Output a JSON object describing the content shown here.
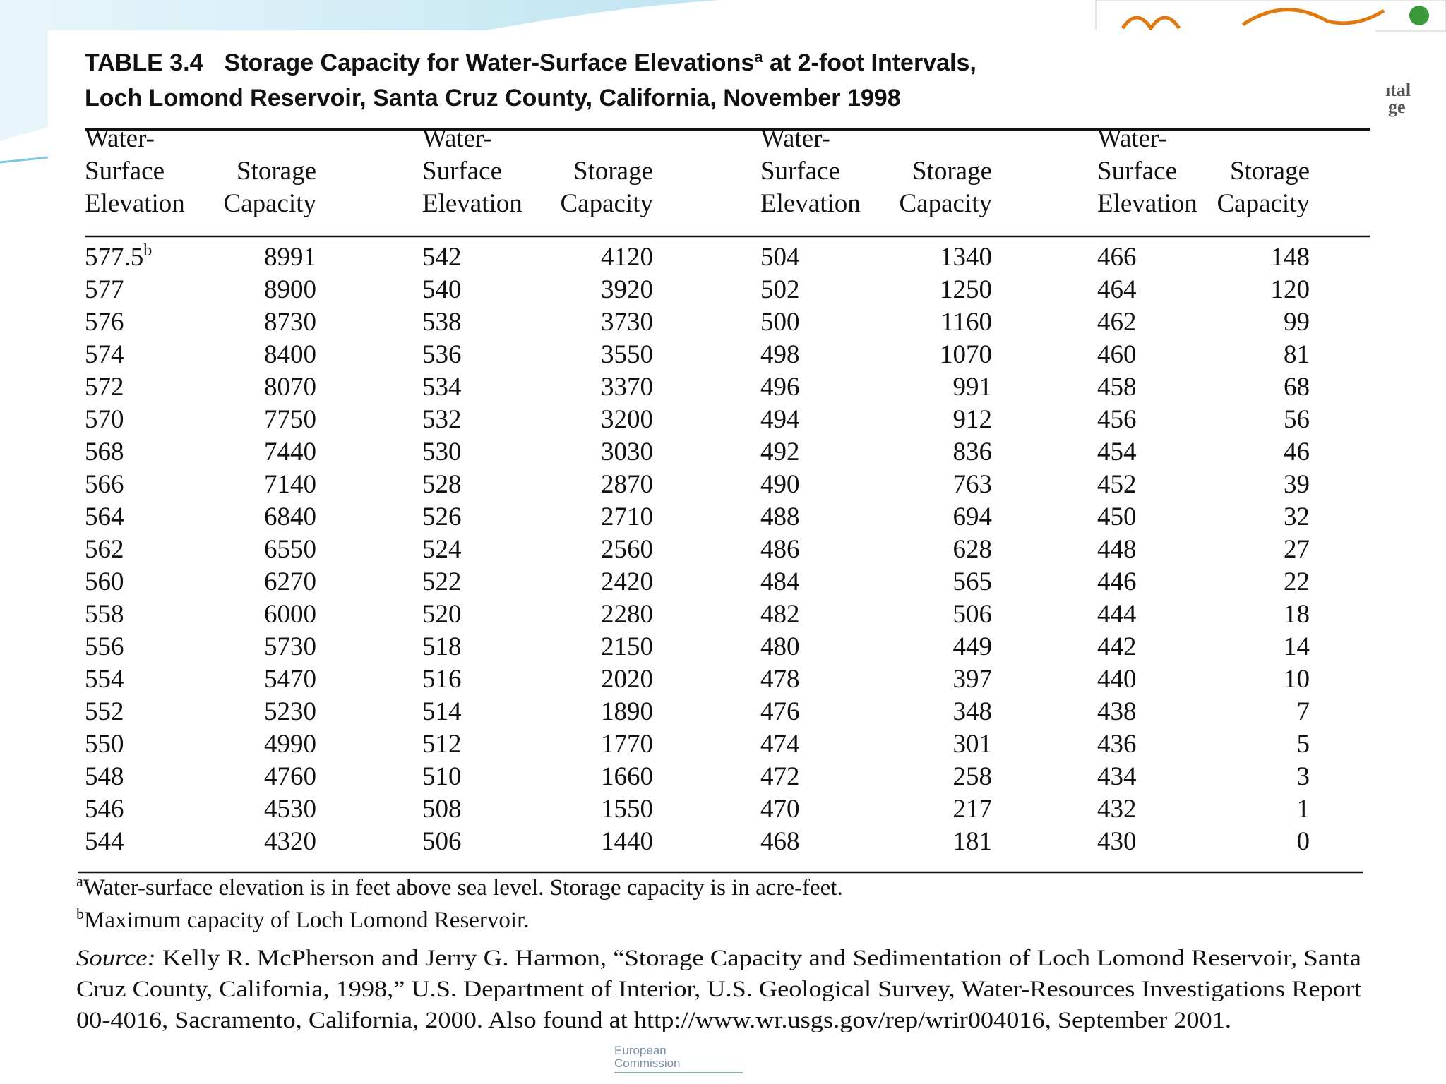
{
  "header": {
    "label": "TABLE 3.4",
    "title_line1_a": "Storage Capacity for Water-Surface Elevations",
    "title_line1_sup": "a",
    "title_line1_b": " at 2-foot Intervals,",
    "title_line2": "Loch Lomond Reservoir, Santa Cruz County, California, November 1998"
  },
  "side_fragments": [
    "ıtal",
    "ge"
  ],
  "table": {
    "columns": [
      [
        "Water-",
        "Surface",
        "Elevation"
      ],
      [
        "Storage",
        "Capacity"
      ],
      [
        "Water-",
        "Surface",
        "Elevation"
      ],
      [
        "Storage",
        "Capacity"
      ],
      [
        "Water-",
        "Surface",
        "Elevation"
      ],
      [
        "Storage",
        "Capacity"
      ],
      [
        "Water-",
        "Surface",
        "Elevation"
      ],
      [
        "Storage",
        "Capacity"
      ]
    ],
    "first_cell_note": "b",
    "rows": [
      [
        "577.5",
        "8991",
        "542",
        "4120",
        "504",
        "1340",
        "466",
        "148"
      ],
      [
        "577",
        "8900",
        "540",
        "3920",
        "502",
        "1250",
        "464",
        "120"
      ],
      [
        "576",
        "8730",
        "538",
        "3730",
        "500",
        "1160",
        "462",
        "99"
      ],
      [
        "574",
        "8400",
        "536",
        "3550",
        "498",
        "1070",
        "460",
        "81"
      ],
      [
        "572",
        "8070",
        "534",
        "3370",
        "496",
        "991",
        "458",
        "68"
      ],
      [
        "570",
        "7750",
        "532",
        "3200",
        "494",
        "912",
        "456",
        "56"
      ],
      [
        "568",
        "7440",
        "530",
        "3030",
        "492",
        "836",
        "454",
        "46"
      ],
      [
        "566",
        "7140",
        "528",
        "2870",
        "490",
        "763",
        "452",
        "39"
      ],
      [
        "564",
        "6840",
        "526",
        "2710",
        "488",
        "694",
        "450",
        "32"
      ],
      [
        "562",
        "6550",
        "524",
        "2560",
        "486",
        "628",
        "448",
        "27"
      ],
      [
        "560",
        "6270",
        "522",
        "2420",
        "484",
        "565",
        "446",
        "22"
      ],
      [
        "558",
        "6000",
        "520",
        "2280",
        "482",
        "506",
        "444",
        "18"
      ],
      [
        "556",
        "5730",
        "518",
        "2150",
        "480",
        "449",
        "442",
        "14"
      ],
      [
        "554",
        "5470",
        "516",
        "2020",
        "478",
        "397",
        "440",
        "10"
      ],
      [
        "552",
        "5230",
        "514",
        "1890",
        "476",
        "348",
        "438",
        "7"
      ],
      [
        "550",
        "4990",
        "512",
        "1770",
        "474",
        "301",
        "436",
        "5"
      ],
      [
        "548",
        "4760",
        "510",
        "1660",
        "472",
        "258",
        "434",
        "3"
      ],
      [
        "546",
        "4530",
        "508",
        "1550",
        "470",
        "217",
        "432",
        "1"
      ],
      [
        "544",
        "4320",
        "506",
        "1440",
        "468",
        "181",
        "430",
        "0"
      ]
    ]
  },
  "footnotes": [
    {
      "mark": "a",
      "text": "Water-surface elevation is in feet above sea level. Storage capacity is in acre-feet."
    },
    {
      "mark": "b",
      "text": "Maximum capacity of Loch Lomond Reservoir."
    }
  ],
  "source": {
    "label": "Source:",
    "lines": [
      " Kelly R. McPherson and Jerry G. Harmon, “Storage Capacity and Sedimentation of Loch Lomond Reservoir, Santa",
      "Cruz County, California, 1998,” U.S. Department of Interior, U.S. Geological Survey, Water-Resources Investigations Report",
      "00-4016, Sacramento, California, 2000. Also found at http://www.wr.usgs.gov/rep/wrir004016, September 2001."
    ]
  },
  "footer_logo": [
    "European",
    "Commission"
  ]
}
